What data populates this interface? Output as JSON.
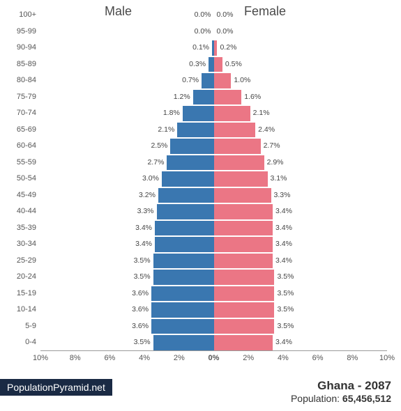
{
  "chart": {
    "type": "population-pyramid",
    "male_label": "Male",
    "female_label": "Female",
    "male_color": "#3a77b0",
    "female_color": "#eb7685",
    "background_color": "#ffffff",
    "label_fontsize": 18,
    "age_fontsize": 11,
    "pct_fontsize": 10.5,
    "x_axis": {
      "min": -10,
      "max": 10,
      "ticks": [
        "10%",
        "8%",
        "6%",
        "4%",
        "2%",
        "0%",
        "2%",
        "4%",
        "6%",
        "8%",
        "10%"
      ]
    },
    "age_groups": [
      {
        "label": "100+",
        "male": 0.0,
        "female": 0.0
      },
      {
        "label": "95-99",
        "male": 0.0,
        "female": 0.0
      },
      {
        "label": "90-94",
        "male": 0.1,
        "female": 0.2
      },
      {
        "label": "85-89",
        "male": 0.3,
        "female": 0.5
      },
      {
        "label": "80-84",
        "male": 0.7,
        "female": 1.0
      },
      {
        "label": "75-79",
        "male": 1.2,
        "female": 1.6
      },
      {
        "label": "70-74",
        "male": 1.8,
        "female": 2.1
      },
      {
        "label": "65-69",
        "male": 2.1,
        "female": 2.4
      },
      {
        "label": "60-64",
        "male": 2.5,
        "female": 2.7
      },
      {
        "label": "55-59",
        "male": 2.7,
        "female": 2.9
      },
      {
        "label": "50-54",
        "male": 3.0,
        "female": 3.1
      },
      {
        "label": "45-49",
        "male": 3.2,
        "female": 3.3
      },
      {
        "label": "40-44",
        "male": 3.3,
        "female": 3.4
      },
      {
        "label": "35-39",
        "male": 3.4,
        "female": 3.4
      },
      {
        "label": "30-34",
        "male": 3.4,
        "female": 3.4
      },
      {
        "label": "25-29",
        "male": 3.5,
        "female": 3.4
      },
      {
        "label": "20-24",
        "male": 3.5,
        "female": 3.5
      },
      {
        "label": "15-19",
        "male": 3.6,
        "female": 3.5
      },
      {
        "label": "10-14",
        "male": 3.6,
        "female": 3.5
      },
      {
        "label": "5-9",
        "male": 3.6,
        "female": 3.5
      },
      {
        "label": "0-4",
        "male": 3.5,
        "female": 3.4
      }
    ]
  },
  "footer": {
    "source": "PopulationPyramid.net",
    "country_year": "Ghana - 2087",
    "population_prefix": "Population: ",
    "population_value": "65,456,512"
  }
}
